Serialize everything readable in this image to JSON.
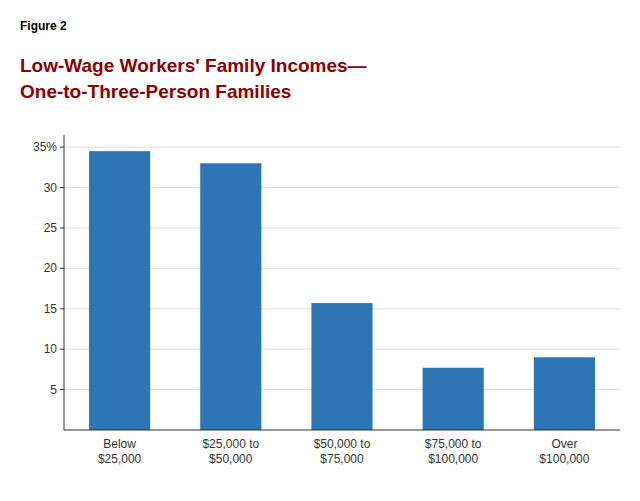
{
  "chart_data": {
    "type": "bar",
    "annotations": [
      "Figure 2"
    ],
    "title": "Low-Wage Workers' Family Incomes—",
    "subtitle": "One-to-Three-Person Families",
    "categories": [
      "Below\n$25,000",
      "$25,000 to\n$50,000",
      "$50,000 to\n$75,000",
      "$75,000 to\n$100,000",
      "Over\n$100,000"
    ],
    "values": [
      34.5,
      33.0,
      15.7,
      7.7,
      9.0
    ],
    "color": "#2E75B6",
    "ylim": [
      0,
      36.5
    ],
    "yticks": [
      5,
      10,
      15,
      20,
      25,
      30,
      {
        "value": 35,
        "label": "35%"
      }
    ],
    "grid": true
  }
}
